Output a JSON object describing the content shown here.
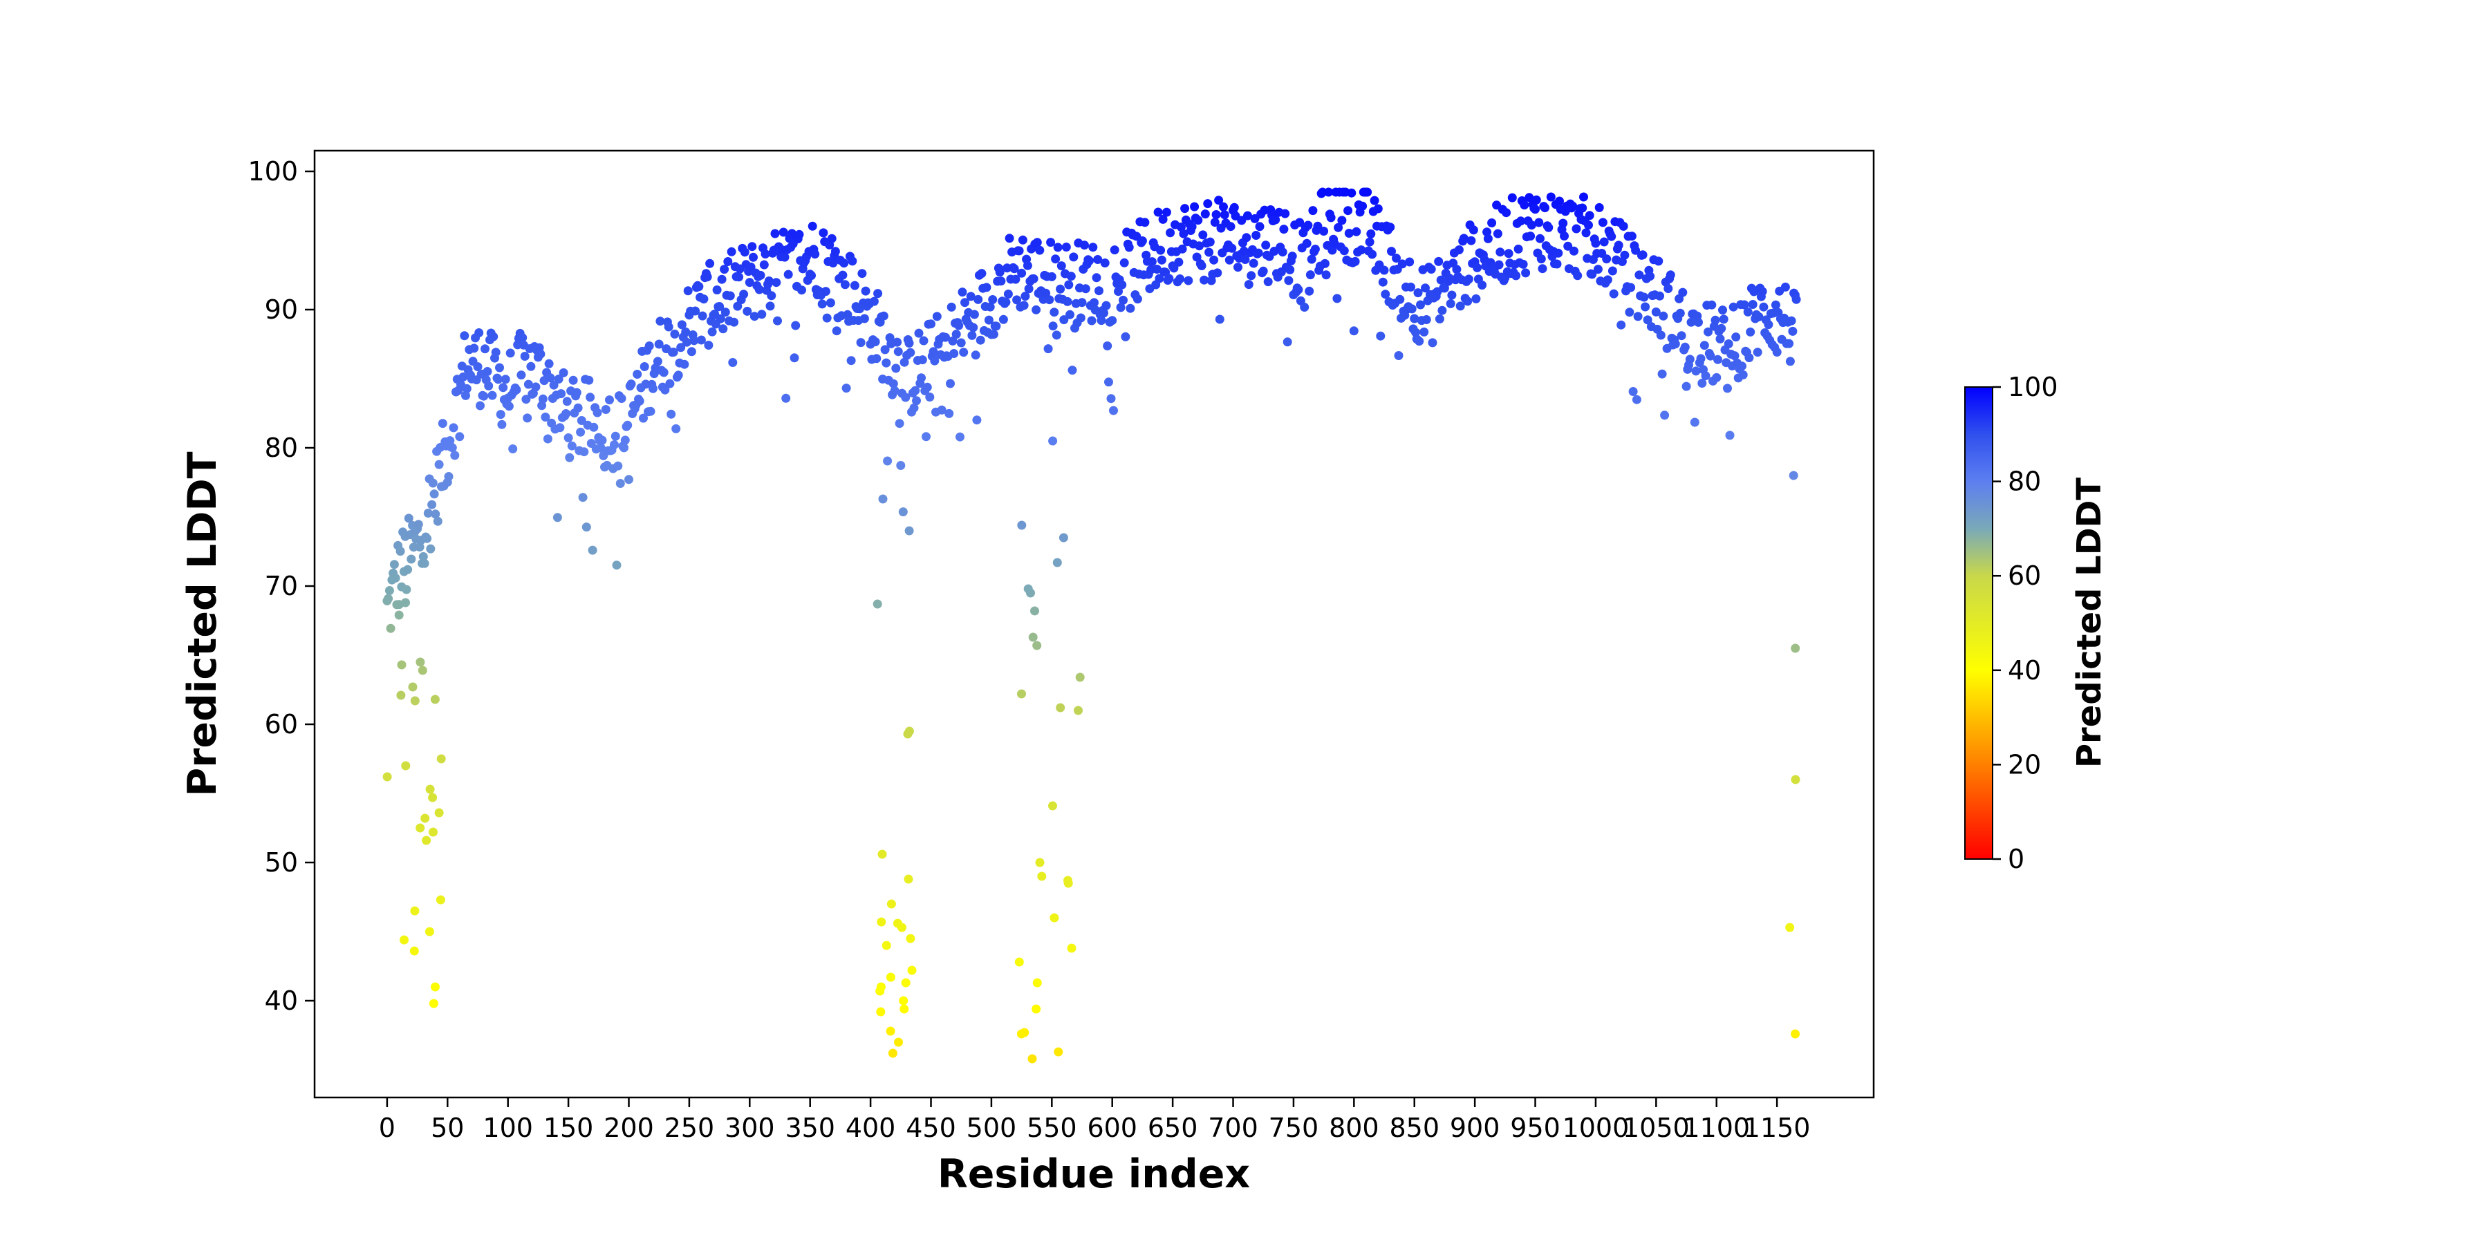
{
  "chart_data": {
    "type": "scatter",
    "xlabel": "Residue index",
    "ylabel": "Predicted LDDT",
    "xlim": [
      -60,
      1230
    ],
    "ylim": [
      33,
      101.5
    ],
    "x_ticks": [
      0,
      50,
      100,
      150,
      200,
      250,
      300,
      350,
      400,
      450,
      500,
      550,
      600,
      650,
      700,
      750,
      800,
      850,
      900,
      950,
      1000,
      1050,
      1100,
      1150
    ],
    "y_ticks": [
      40,
      50,
      60,
      70,
      80,
      90,
      100
    ],
    "grid": false,
    "residue_count": 1167,
    "profile_anchors": [
      [
        0,
        68
      ],
      [
        10,
        71
      ],
      [
        25,
        73
      ],
      [
        40,
        77
      ],
      [
        50,
        80
      ],
      [
        65,
        86
      ],
      [
        80,
        86
      ],
      [
        100,
        84
      ],
      [
        115,
        86
      ],
      [
        130,
        85
      ],
      [
        150,
        82
      ],
      [
        175,
        82
      ],
      [
        195,
        81
      ],
      [
        220,
        86
      ],
      [
        260,
        90
      ],
      [
        300,
        92
      ],
      [
        330,
        93
      ],
      [
        360,
        94
      ],
      [
        395,
        90
      ],
      [
        430,
        85
      ],
      [
        460,
        87
      ],
      [
        490,
        90
      ],
      [
        520,
        93
      ],
      [
        555,
        92
      ],
      [
        600,
        92
      ],
      [
        650,
        95
      ],
      [
        700,
        95
      ],
      [
        740,
        95
      ],
      [
        760,
        93
      ],
      [
        780,
        97
      ],
      [
        810,
        96
      ],
      [
        840,
        92
      ],
      [
        860,
        90
      ],
      [
        880,
        92
      ],
      [
        905,
        94
      ],
      [
        950,
        96
      ],
      [
        1000,
        95
      ],
      [
        1050,
        91
      ],
      [
        1080,
        88
      ],
      [
        1110,
        87
      ],
      [
        1140,
        90
      ],
      [
        1160,
        89
      ],
      [
        1166,
        88
      ]
    ],
    "low_confidence_regions": [
      {
        "x_start": 0,
        "x_end": 45,
        "y_values": [
          52.5,
          56.2,
          61.8,
          62.1,
          64.3,
          67.9,
          63.9,
          61.7,
          57.5,
          57.0,
          55.3,
          54.7,
          53.6,
          52.2,
          51.6,
          53.2,
          47.3,
          46.5,
          45.0,
          44.4,
          43.6,
          41.0,
          39.8,
          68.8,
          64.5,
          62.7
        ]
      },
      {
        "x_start": 405,
        "x_end": 435,
        "y_values": [
          68.7,
          59.3,
          48.8,
          47.0,
          45.6,
          45.3,
          44.5,
          44.0,
          42.2,
          41.7,
          41.3,
          41.0,
          40.7,
          40.0,
          39.4,
          39.2,
          37.8,
          37.0,
          36.2,
          45.7,
          59.5,
          50.6,
          74.0,
          76.3
        ]
      },
      {
        "x_start": 520,
        "x_end": 575,
        "y_values": [
          80.5,
          68.2,
          63.4,
          54.1,
          49.0,
          48.7,
          48.5,
          46.0,
          43.8,
          42.8,
          41.3,
          39.4,
          37.7,
          37.6,
          36.3,
          35.8,
          50.0,
          69.5,
          65.7,
          66.3,
          62.2,
          61.2,
          61.0,
          69.8,
          71.7,
          74.4,
          73.5
        ]
      },
      {
        "x_start": 1160,
        "x_end": 1166,
        "y_values": [
          78.0,
          65.5,
          56.0,
          45.3,
          37.6
        ]
      }
    ],
    "colorbar": {
      "label": "Predicted LDDT",
      "min": 0,
      "max": 100,
      "ticks": [
        0,
        20,
        40,
        60,
        80,
        100
      ],
      "colormap": [
        [
          0,
          "#ff0000"
        ],
        [
          40,
          "#ffff00"
        ],
        [
          60,
          "#c8d84a"
        ],
        [
          70,
          "#7aa9b8"
        ],
        [
          80,
          "#5c7ff0"
        ],
        [
          90,
          "#3050ee"
        ],
        [
          100,
          "#0000ff"
        ]
      ]
    }
  }
}
